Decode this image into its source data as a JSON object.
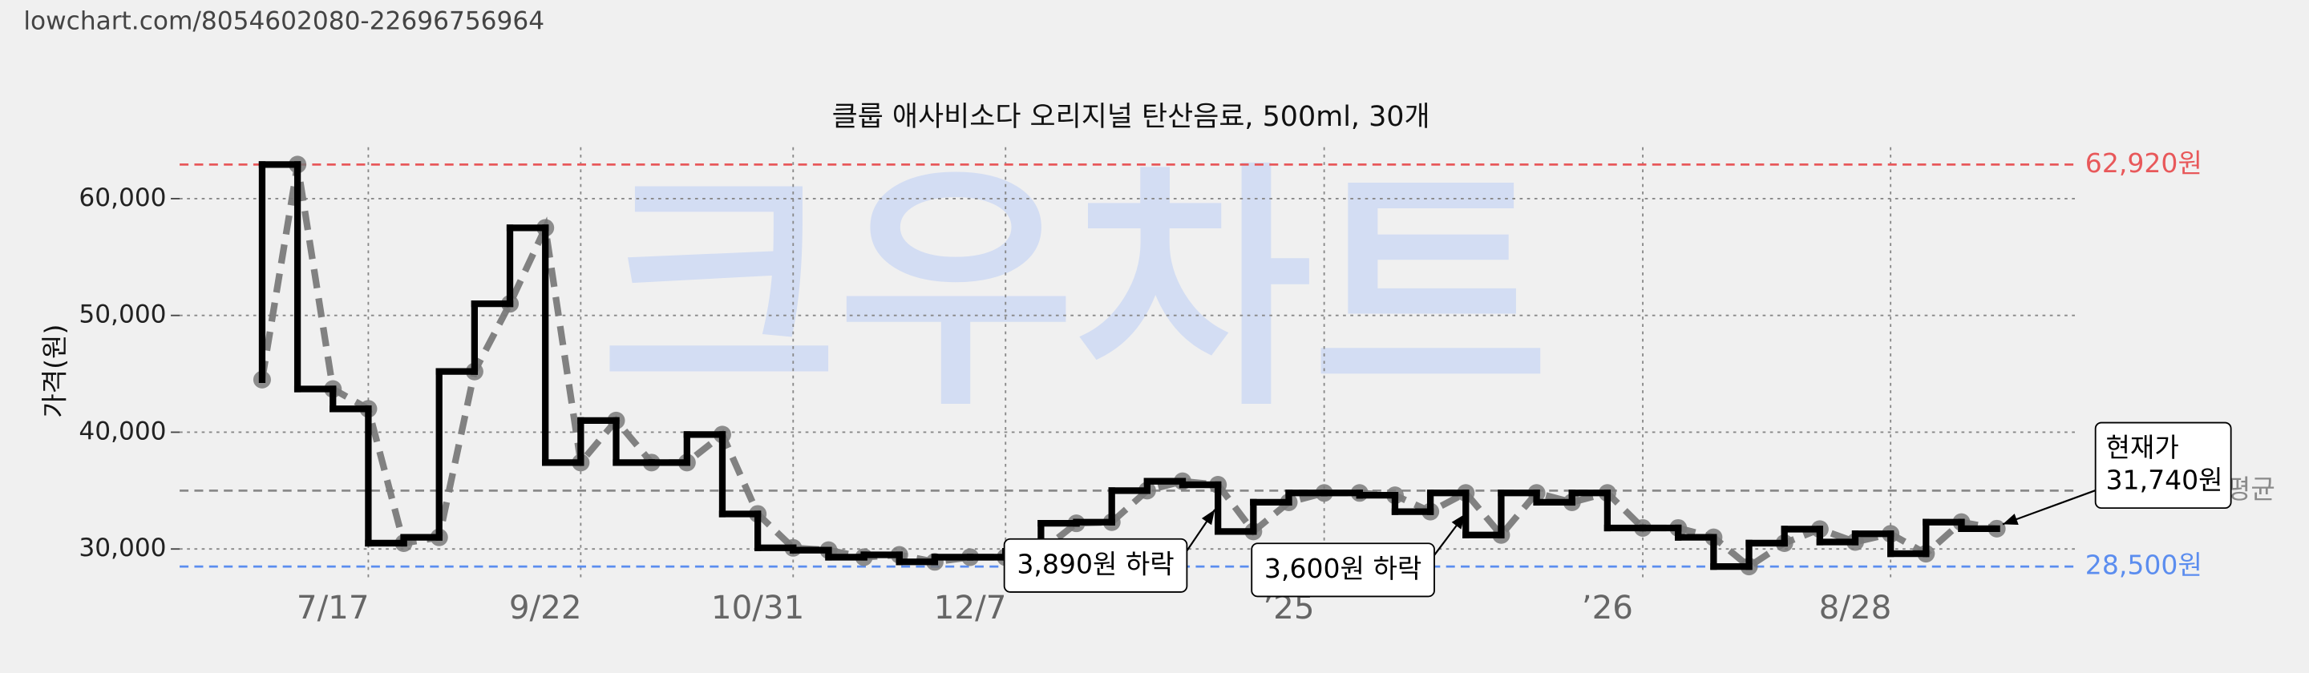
{
  "header": {
    "url": "lowchart.com/8054602080-22696756964"
  },
  "chart_data": {
    "type": "step",
    "title": "클룹 애사비소다 오리지널 탄산음료, 500ml, 30개",
    "watermark": "크우차트",
    "ylabel": "가격(원)",
    "categories": [
      null,
      null,
      "7/17",
      null,
      null,
      null,
      null,
      null,
      "9/22",
      null,
      null,
      null,
      null,
      null,
      "10/31",
      null,
      null,
      null,
      null,
      null,
      "12/7",
      null,
      null,
      null,
      null,
      null,
      null,
      null,
      null,
      "’25",
      null,
      null,
      null,
      null,
      null,
      null,
      null,
      null,
      "’26",
      null,
      null,
      null,
      null,
      null,
      null,
      "8/28",
      null,
      null,
      null,
      null
    ],
    "series": [
      {
        "color": "#000000",
        "marker_color": "#7a7a7a",
        "values": [
          44500,
          62920,
          43700,
          42000,
          30500,
          31000,
          45200,
          51000,
          57500,
          37400,
          41000,
          37400,
          37400,
          39800,
          33000,
          30100,
          29900,
          29300,
          29500,
          28900,
          29300,
          29300,
          29800,
          32200,
          32300,
          35000,
          35800,
          35500,
          31500,
          34000,
          34800,
          34800,
          34600,
          33200,
          34800,
          31200,
          34800,
          34000,
          34800,
          31800,
          31800,
          31000,
          28500,
          30500,
          31700,
          30600,
          31300,
          29600,
          32300,
          31740
        ]
      }
    ],
    "ylim": [
      27200,
      64400
    ],
    "yticks": [
      {
        "value": 30000,
        "label": "30,000"
      },
      {
        "value": 40000,
        "label": "40,000"
      },
      {
        "value": 50000,
        "label": "50,000"
      },
      {
        "value": 60000,
        "label": "60,000"
      }
    ],
    "grid": true,
    "reference_lines": [
      {
        "value": 62920,
        "label": "62,920원",
        "color": "#e8585a"
      },
      {
        "value": 28500,
        "label": "28,500원",
        "color": "#5b8def"
      },
      {
        "value": 35000,
        "label": "평균",
        "color": "#8a8a8a"
      }
    ],
    "annotations": [
      {
        "lines": [
          "3,890원 하락"
        ]
      },
      {
        "lines": [
          "3,600원 하락"
        ]
      },
      {
        "lines": [
          "현재가",
          "31,740원"
        ]
      }
    ]
  }
}
